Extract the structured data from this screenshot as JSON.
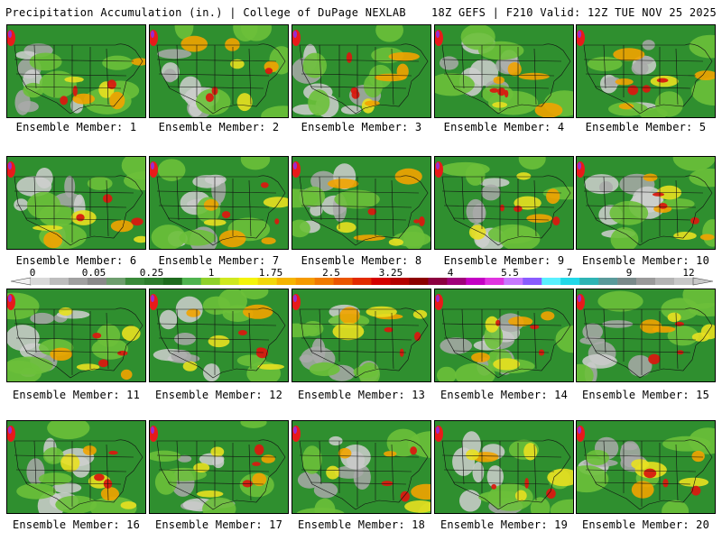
{
  "header": {
    "title": "Precipitation Accumulation (in.) | College of DuPage NEXLAB",
    "run_info": "18Z GEFS | F210 Valid: 12Z TUE NOV 25 2025"
  },
  "panels": [
    {
      "label": "Ensemble Member: 1"
    },
    {
      "label": "Ensemble Member: 2"
    },
    {
      "label": "Ensemble Member: 3"
    },
    {
      "label": "Ensemble Member: 4"
    },
    {
      "label": "Ensemble Member: 5"
    },
    {
      "label": "Ensemble Member: 6"
    },
    {
      "label": "Ensemble Member: 7"
    },
    {
      "label": "Ensemble Member: 8"
    },
    {
      "label": "Ensemble Member: 9"
    },
    {
      "label": "Ensemble Member: 10"
    },
    {
      "label": "Ensemble Member: 11"
    },
    {
      "label": "Ensemble Member: 12"
    },
    {
      "label": "Ensemble Member: 13"
    },
    {
      "label": "Ensemble Member: 14"
    },
    {
      "label": "Ensemble Member: 15"
    },
    {
      "label": "Ensemble Member: 16"
    },
    {
      "label": "Ensemble Member: 17"
    },
    {
      "label": "Ensemble Member: 18"
    },
    {
      "label": "Ensemble Member: 19"
    },
    {
      "label": "Ensemble Member: 20"
    }
  ],
  "colorbar": {
    "labels": [
      "0",
      "0.05",
      "0.25",
      "1",
      "1.75",
      "2.5",
      "3.25",
      "4",
      "5.5",
      "7",
      "9",
      "12"
    ],
    "colors": [
      "#d9d9d9",
      "#bdbdbd",
      "#a0a0a0",
      "#8a8a8a",
      "#6e9e6e",
      "#3a8a3a",
      "#2e7d2e",
      "#1e6b1e",
      "#4fb34f",
      "#8fd12b",
      "#cfe81f",
      "#f4f40a",
      "#f2d70a",
      "#f5b400",
      "#f59a00",
      "#f07a00",
      "#ea5500",
      "#e22a00",
      "#d40000",
      "#b40000",
      "#8c0000",
      "#8c0040",
      "#a0007a",
      "#c400c4",
      "#e034e0",
      "#c878ff",
      "#8a5cff",
      "#5af0ff",
      "#22d8e8",
      "#2eb4b4",
      "#5a9a9a",
      "#7a8a8a",
      "#9a9a9a",
      "#b4b4b4",
      "#c8c8c8"
    ]
  }
}
